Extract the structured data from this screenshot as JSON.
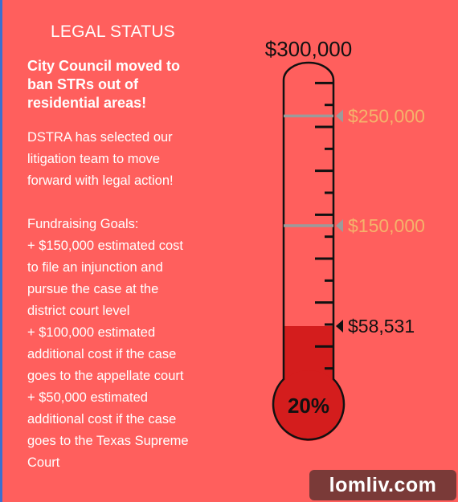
{
  "left": {
    "title": "LEGAL STATUS",
    "headline_lines": [
      "City Council moved to",
      "ban STRs out of",
      "residential areas!"
    ],
    "paragraph_lines": [
      "DSTRA has selected our",
      "litigation team to move",
      "forward with legal action!"
    ],
    "goals_lines": [
      "Fundraising Goals:",
      "+ $150,000 estimated cost",
      "to file an injunction and",
      "pursue the case at the",
      "district court level",
      "+ $100,000 estimated",
      "additional cost if the case",
      "goes to the appellate court",
      "+ $50,000 estimated",
      "additional cost if the case",
      "goes to the Texas Supreme",
      "Court"
    ]
  },
  "thermometer": {
    "goal_label": "$300,000",
    "goal_value": 300000,
    "raised_label": "$58,531",
    "raised_value": 58531,
    "percent_label": "20%",
    "milestones": [
      {
        "label": "$250,000",
        "value": 250000
      },
      {
        "label": "$150,000",
        "value": 150000
      }
    ],
    "colors": {
      "fill": "#d41d1d",
      "milestone": "#f5b26b",
      "milestone_line": "#9b9b9b",
      "outline": "#111111"
    }
  },
  "watermark": {
    "text": "lomliv.com"
  }
}
